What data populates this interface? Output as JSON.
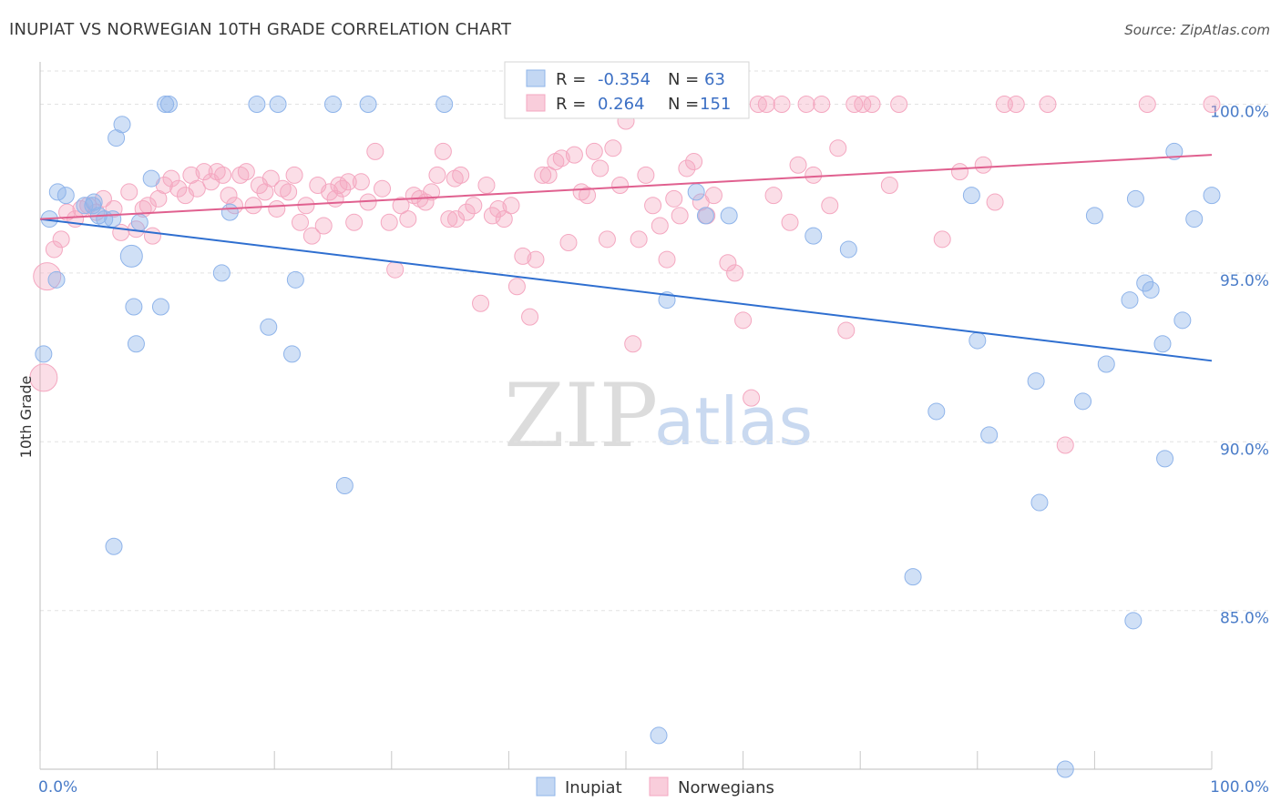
{
  "title": "INUPIAT VS NORWEGIAN 10TH GRADE CORRELATION CHART",
  "source": "Source: ZipAtlas.com",
  "watermark": {
    "zip": "ZIP",
    "atlas": "atlas"
  },
  "colors": {
    "inupiat": "#8fb4ea",
    "norwegians": "#f4a7c0",
    "inupiat_line": "#2f6fd0",
    "norwegians_line": "#e0608f"
  },
  "legend": {
    "rows": [
      {
        "r_label": "R =",
        "r_value": "-0.354",
        "n_label": "N =",
        "n_value": "63"
      },
      {
        "r_label": "R =",
        "r_value": "0.264",
        "n_label": "N =",
        "n_value": "151"
      }
    ]
  },
  "chart_data": {
    "type": "scatter",
    "ylabel": "10th Grade",
    "xlim": [
      0,
      100
    ],
    "ylim": [
      80.3,
      101.2
    ],
    "x_tick_labels": [
      "0.0%",
      "100.0%"
    ],
    "y_ticks": [
      {
        "value": 100,
        "label": "100.0%"
      },
      {
        "value": 95,
        "label": "95.0%"
      },
      {
        "value": 90,
        "label": "90.0%"
      },
      {
        "value": 85,
        "label": "85.0%"
      }
    ],
    "grid": true,
    "legend_position": "top-center",
    "series": [
      {
        "name": "Inupiat",
        "trend": {
          "x": [
            0,
            100
          ],
          "y": [
            96.6,
            92.4
          ]
        },
        "points": [
          [
            0.8,
            96.6
          ],
          [
            1.5,
            97.4
          ],
          [
            2.2,
            97.3
          ],
          [
            3.8,
            97.0
          ],
          [
            4.5,
            97.0
          ],
          [
            4.6,
            97.1
          ],
          [
            5.0,
            96.7
          ],
          [
            5.5,
            96.6
          ],
          [
            6.2,
            96.6
          ],
          [
            6.5,
            99.0
          ],
          [
            7.0,
            99.4
          ],
          [
            1.4,
            94.8
          ],
          [
            0.3,
            92.6
          ],
          [
            7.8,
            95.5
          ],
          [
            8.0,
            94.0
          ],
          [
            8.2,
            92.9
          ],
          [
            8.5,
            96.5
          ],
          [
            9.5,
            97.8
          ],
          [
            10.3,
            94.0
          ],
          [
            10.7,
            100.0
          ],
          [
            11.0,
            100.0
          ],
          [
            15.5,
            95.0
          ],
          [
            16.2,
            96.8
          ],
          [
            18.5,
            100.0
          ],
          [
            19.5,
            93.4
          ],
          [
            20.3,
            100.0
          ],
          [
            21.5,
            92.6
          ],
          [
            21.8,
            94.8
          ],
          [
            25.0,
            100.0
          ],
          [
            26.0,
            88.7
          ],
          [
            28.0,
            100.0
          ],
          [
            34.5,
            100.0
          ],
          [
            6.3,
            86.9
          ],
          [
            50.0,
            100.0
          ],
          [
            52.8,
            81.3
          ],
          [
            53.5,
            94.2
          ],
          [
            56.0,
            97.4
          ],
          [
            56.8,
            96.7
          ],
          [
            58.8,
            96.7
          ],
          [
            66.0,
            96.1
          ],
          [
            69.0,
            95.7
          ],
          [
            74.5,
            86.0
          ],
          [
            76.5,
            90.9
          ],
          [
            79.5,
            97.3
          ],
          [
            80.0,
            93.0
          ],
          [
            81.0,
            90.2
          ],
          [
            85.0,
            91.8
          ],
          [
            85.3,
            88.2
          ],
          [
            87.5,
            80.3
          ],
          [
            89.0,
            91.2
          ],
          [
            90.0,
            96.7
          ],
          [
            91.0,
            92.3
          ],
          [
            93.0,
            94.2
          ],
          [
            93.3,
            84.7
          ],
          [
            93.5,
            97.2
          ],
          [
            94.3,
            94.7
          ],
          [
            94.8,
            94.5
          ],
          [
            95.8,
            92.9
          ],
          [
            96.0,
            89.5
          ],
          [
            96.8,
            98.6
          ],
          [
            97.5,
            93.6
          ],
          [
            98.5,
            96.6
          ],
          [
            100.0,
            97.3
          ]
        ]
      },
      {
        "name": "Norwegians",
        "trend": {
          "x": [
            0,
            100
          ],
          "y": [
            96.6,
            98.5
          ]
        },
        "points": [
          [
            0.3,
            91.9
          ],
          [
            0.6,
            94.9
          ],
          [
            1.2,
            95.7
          ],
          [
            1.8,
            96.0
          ],
          [
            2.3,
            96.8
          ],
          [
            3.0,
            96.6
          ],
          [
            3.5,
            96.9
          ],
          [
            4.1,
            97.0
          ],
          [
            4.8,
            96.8
          ],
          [
            5.4,
            97.2
          ],
          [
            6.3,
            96.9
          ],
          [
            6.9,
            96.2
          ],
          [
            7.6,
            97.4
          ],
          [
            8.2,
            96.3
          ],
          [
            8.8,
            96.9
          ],
          [
            9.2,
            97.0
          ],
          [
            9.6,
            96.1
          ],
          [
            10.1,
            97.2
          ],
          [
            10.6,
            97.6
          ],
          [
            11.2,
            97.8
          ],
          [
            11.8,
            97.5
          ],
          [
            12.4,
            97.3
          ],
          [
            12.9,
            97.9
          ],
          [
            13.4,
            97.5
          ],
          [
            14.0,
            98.0
          ],
          [
            14.6,
            97.7
          ],
          [
            15.1,
            98.0
          ],
          [
            15.6,
            97.9
          ],
          [
            16.1,
            97.3
          ],
          [
            16.6,
            97.0
          ],
          [
            17.1,
            97.9
          ],
          [
            17.6,
            98.0
          ],
          [
            18.2,
            97.0
          ],
          [
            18.7,
            97.6
          ],
          [
            19.2,
            97.4
          ],
          [
            19.7,
            97.8
          ],
          [
            20.2,
            96.9
          ],
          [
            20.7,
            97.5
          ],
          [
            21.2,
            97.4
          ],
          [
            21.7,
            97.9
          ],
          [
            22.2,
            96.5
          ],
          [
            22.7,
            97.0
          ],
          [
            23.2,
            96.1
          ],
          [
            23.7,
            97.6
          ],
          [
            24.2,
            96.4
          ],
          [
            24.7,
            97.4
          ],
          [
            25.2,
            97.2
          ],
          [
            25.8,
            97.5
          ],
          [
            26.3,
            97.7
          ],
          [
            26.8,
            96.5
          ],
          [
            27.4,
            97.7
          ],
          [
            28.0,
            97.1
          ],
          [
            28.6,
            98.6
          ],
          [
            29.2,
            97.5
          ],
          [
            29.8,
            96.5
          ],
          [
            30.3,
            95.1
          ],
          [
            30.8,
            97.0
          ],
          [
            31.4,
            96.6
          ],
          [
            31.9,
            97.3
          ],
          [
            32.4,
            97.2
          ],
          [
            32.9,
            97.1
          ],
          [
            33.4,
            97.4
          ],
          [
            33.9,
            97.9
          ],
          [
            34.4,
            98.6
          ],
          [
            34.9,
            96.6
          ],
          [
            35.4,
            97.8
          ],
          [
            35.9,
            97.9
          ],
          [
            36.4,
            96.8
          ],
          [
            37.0,
            97.0
          ],
          [
            37.6,
            94.1
          ],
          [
            38.1,
            97.6
          ],
          [
            38.6,
            96.7
          ],
          [
            39.1,
            96.9
          ],
          [
            39.6,
            96.6
          ],
          [
            40.2,
            97.0
          ],
          [
            40.7,
            94.6
          ],
          [
            41.2,
            95.5
          ],
          [
            41.8,
            93.7
          ],
          [
            42.3,
            95.4
          ],
          [
            42.9,
            97.9
          ],
          [
            43.4,
            97.9
          ],
          [
            44.0,
            98.3
          ],
          [
            44.5,
            98.4
          ],
          [
            45.1,
            95.9
          ],
          [
            45.6,
            98.5
          ],
          [
            46.2,
            97.4
          ],
          [
            46.7,
            97.3
          ],
          [
            47.3,
            98.6
          ],
          [
            47.8,
            98.1
          ],
          [
            48.4,
            96.0
          ],
          [
            48.9,
            98.7
          ],
          [
            49.5,
            97.6
          ],
          [
            50.0,
            99.5
          ],
          [
            50.6,
            92.9
          ],
          [
            51.1,
            96.0
          ],
          [
            51.7,
            97.9
          ],
          [
            52.3,
            97.0
          ],
          [
            52.9,
            96.4
          ],
          [
            53.5,
            95.4
          ],
          [
            54.1,
            97.2
          ],
          [
            54.6,
            96.7
          ],
          [
            55.2,
            98.1
          ],
          [
            55.8,
            98.3
          ],
          [
            56.4,
            97.1
          ],
          [
            56.9,
            96.7
          ],
          [
            57.5,
            97.3
          ],
          [
            58.1,
            100.0
          ],
          [
            58.7,
            95.3
          ],
          [
            59.3,
            95.0
          ],
          [
            60.0,
            93.6
          ],
          [
            60.7,
            91.3
          ],
          [
            61.3,
            100.0
          ],
          [
            62.0,
            100.0
          ],
          [
            62.6,
            97.3
          ],
          [
            63.3,
            100.0
          ],
          [
            64.0,
            96.5
          ],
          [
            64.7,
            98.2
          ],
          [
            65.4,
            100.0
          ],
          [
            66.0,
            97.9
          ],
          [
            66.7,
            100.0
          ],
          [
            67.4,
            97.0
          ],
          [
            68.1,
            98.7
          ],
          [
            68.8,
            93.3
          ],
          [
            69.5,
            100.0
          ],
          [
            70.2,
            100.0
          ],
          [
            71.0,
            100.0
          ],
          [
            72.5,
            97.6
          ],
          [
            73.3,
            100.0
          ],
          [
            77.0,
            96.0
          ],
          [
            78.5,
            98.0
          ],
          [
            80.5,
            98.2
          ],
          [
            81.5,
            97.1
          ],
          [
            82.3,
            100.0
          ],
          [
            83.3,
            100.0
          ],
          [
            86.0,
            100.0
          ],
          [
            87.5,
            89.9
          ],
          [
            94.5,
            100.0
          ],
          [
            100.0,
            100.0
          ],
          [
            25.5,
            97.6
          ],
          [
            35.5,
            96.6
          ]
        ]
      }
    ],
    "bottom_legend": [
      "Inupiat",
      "Norwegians"
    ]
  }
}
